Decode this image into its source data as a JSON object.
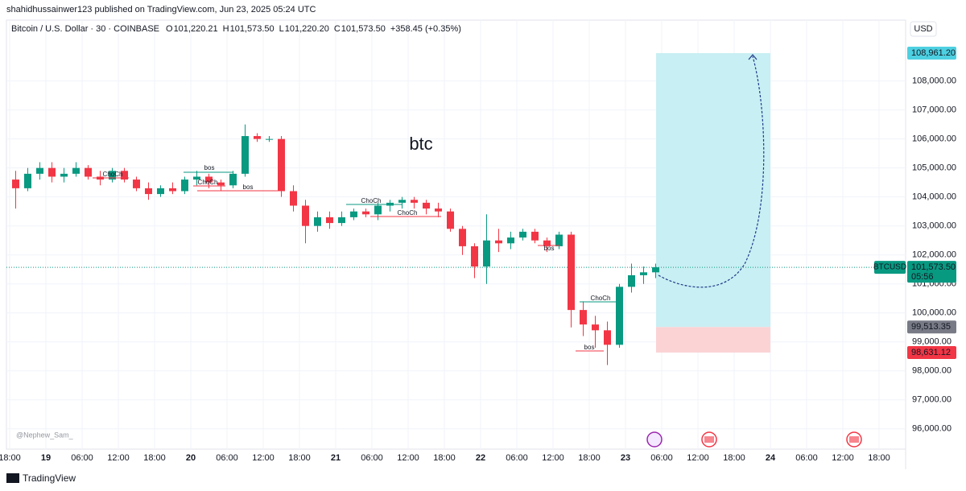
{
  "publisher": "shahidhussainwer123 published on TradingView.com, Jun 23, 2025 05:24 UTC",
  "brand": "TradingView",
  "chart_data": {
    "type": "candlestick",
    "symbol": "Bitcoin / U.S. Dollar · 30 · COINBASE",
    "legend": [
      {
        "key": "O",
        "value": "101,220.21"
      },
      {
        "key": "H",
        "value": "101,573.50"
      },
      {
        "key": "L",
        "value": "101,220.20"
      },
      {
        "key": "C",
        "value": "101,573.50"
      }
    ],
    "change": "+358.45 (+0.35%)",
    "currency": "USD",
    "title": "btc",
    "watermark": "@Nephew_Sam_",
    "up_color": "#089981",
    "down_color": "#f23645",
    "grid": true,
    "categories": [
      "18:00",
      null,
      null,
      "19",
      null,
      null,
      "06:00",
      null,
      null,
      "12:00",
      null,
      null,
      "18:00",
      null,
      null,
      "20",
      null,
      null,
      "06:00",
      null,
      null,
      "12:00",
      null,
      null,
      "18:00",
      null,
      null,
      "21",
      null,
      null,
      "06:00",
      null,
      null,
      "12:00",
      null,
      null,
      "18:00",
      null,
      null,
      "22",
      null,
      null,
      "06:00",
      null,
      null,
      "12:00",
      null,
      null,
      "18:00",
      null,
      null,
      "23",
      null,
      null,
      "06:00",
      null,
      null,
      "12:00",
      null,
      null,
      "18:00",
      null,
      null,
      "24",
      null,
      null,
      "06:00",
      null,
      null,
      "12:00",
      null,
      null,
      "18:00"
    ],
    "open": [
      104600,
      104300,
      104800,
      105000,
      104700,
      104800,
      105000,
      104700,
      104600,
      104900,
      104600,
      104300,
      104100,
      104300,
      104200,
      104600,
      104700,
      104500,
      104400,
      104800,
      106100,
      106000,
      106000,
      104200,
      103700,
      103000,
      103300,
      103100,
      103300,
      103500,
      103400,
      103700,
      103800,
      103900,
      103800,
      103600,
      103500,
      102900,
      102300,
      101600,
      102500,
      102400,
      102600,
      102800,
      102500,
      102300,
      102700,
      100100,
      99600,
      99400,
      98900,
      100900,
      101300,
      101400,
      null,
      null,
      null,
      null,
      null,
      null,
      null,
      null,
      null,
      null,
      null,
      null,
      null,
      null,
      null,
      null,
      null,
      null,
      null
    ],
    "high": [
      104900,
      105000,
      105200,
      105200,
      105000,
      105200,
      105100,
      104900,
      105000,
      105000,
      104700,
      104500,
      104400,
      104500,
      104700,
      104900,
      104800,
      104600,
      104900,
      106500,
      106200,
      106100,
      106100,
      104400,
      103900,
      103500,
      103500,
      103500,
      103600,
      103600,
      103800,
      103900,
      104000,
      104000,
      103900,
      103800,
      103600,
      103000,
      102400,
      103400,
      102900,
      102800,
      102900,
      102900,
      102600,
      102800,
      102800,
      100400,
      99900,
      99700,
      101000,
      101700,
      101600,
      101700,
      null,
      null,
      null,
      null,
      null,
      null,
      null,
      null,
      null,
      null,
      null,
      null,
      null,
      null,
      null,
      null,
      null,
      null,
      null
    ],
    "low": [
      103600,
      104200,
      104600,
      104500,
      104500,
      104700,
      104600,
      104400,
      104500,
      104500,
      104200,
      103900,
      104000,
      104100,
      104100,
      104400,
      104300,
      104200,
      104300,
      104700,
      105900,
      105900,
      104000,
      103500,
      102400,
      102800,
      102900,
      103000,
      103200,
      103300,
      103200,
      103500,
      103600,
      103600,
      103400,
      103300,
      102800,
      102000,
      101200,
      101000,
      102100,
      102200,
      102500,
      102400,
      102100,
      102200,
      99500,
      99200,
      98800,
      98200,
      98800,
      100700,
      101000,
      101200,
      null,
      null,
      null,
      null,
      null,
      null,
      null,
      null,
      null,
      null,
      null,
      null,
      null,
      null,
      null,
      null,
      null,
      null,
      null
    ],
    "close": [
      104300,
      104800,
      105000,
      104700,
      104800,
      105000,
      104700,
      104600,
      104900,
      104600,
      104300,
      104100,
      104300,
      104200,
      104600,
      104700,
      104500,
      104400,
      104800,
      106100,
      106000,
      106000,
      104200,
      103700,
      103000,
      103300,
      103100,
      103300,
      103500,
      103400,
      103700,
      103800,
      103900,
      103800,
      103600,
      103500,
      102900,
      102300,
      101600,
      102500,
      102400,
      102600,
      102800,
      102500,
      102300,
      102700,
      100100,
      99600,
      99400,
      98900,
      100900,
      101300,
      101400,
      101573.5,
      null,
      null,
      null,
      null,
      null,
      null,
      null,
      null,
      null,
      null,
      null,
      null,
      null,
      null,
      null,
      null,
      null,
      null,
      null
    ],
    "ylim": [
      95300,
      110100
    ],
    "yticks": [
      {
        "value": 96000,
        "label": "96,000.00"
      },
      {
        "value": 97000,
        "label": "97,000.00"
      },
      {
        "value": 98000,
        "label": "98,000.00"
      },
      {
        "value": 99000,
        "label": "99,000.00"
      },
      {
        "value": 100000,
        "label": "100,000.00"
      },
      {
        "value": 101000,
        "label": "101,000.00"
      },
      {
        "value": 102000,
        "label": "102,000.00"
      },
      {
        "value": 103000,
        "label": "103,000.00"
      },
      {
        "value": 104000,
        "label": "104,000.00"
      },
      {
        "value": 105000,
        "label": "105,000.00"
      },
      {
        "value": 106000,
        "label": "106,000.00"
      },
      {
        "value": 107000,
        "label": "107,000.00"
      },
      {
        "value": 108000,
        "label": "108,000.00"
      }
    ],
    "last_price": {
      "value": 101573.5,
      "label": "101,573.50",
      "ticker": "BTCUSD",
      "countdown": "05:56",
      "color": "#089981"
    },
    "position": {
      "target": {
        "value": 108961.2,
        "label": "108,961.20"
      },
      "stop": {
        "value": 99513.35,
        "label": "99,513.35"
      },
      "stop_limit": {
        "value": 98631.12,
        "label": "98,631.12"
      },
      "profit_color": "#c8eff3",
      "loss_color": "#fbd3d5"
    },
    "annotations": [
      {
        "text": "ChoCh",
        "color": "#f23645"
      },
      {
        "text": "bos",
        "color": "#089981"
      },
      {
        "text": "ChoCh",
        "color": "#f23645"
      },
      {
        "text": "bos",
        "color": "#f23645"
      },
      {
        "text": "ChoCh",
        "color": "#089981"
      },
      {
        "text": "ChoCh",
        "color": "#f23645"
      },
      {
        "text": "bos",
        "color": "#f23645"
      },
      {
        "text": "ChoCh",
        "color": "#089981"
      },
      {
        "text": "bos",
        "color": "#f23645"
      }
    ]
  }
}
